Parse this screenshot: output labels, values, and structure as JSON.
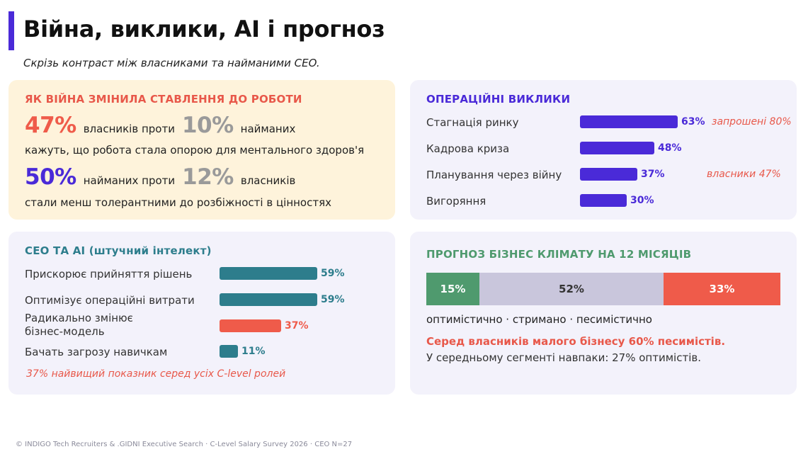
{
  "header": {
    "title": "Війна, виклики, AI і прогноз",
    "subtitle": "Скрізь контраст між власниками та найманими CEO."
  },
  "war_card": {
    "heading": "ЯК ВІЙНА ЗМІНИЛА СТАВЛЕННЯ ДО РОБОТИ",
    "stat1": {
      "pct_a": "47%",
      "text_a": "власників проти",
      "pct_b": "10%",
      "text_b": "найманих"
    },
    "note1": "кажуть, що робота стала опорою для ментального здоров'я",
    "stat2": {
      "pct_a": "50%",
      "text_a": "найманих проти",
      "pct_b": "12%",
      "text_b": "власників"
    },
    "note2": "стали менш толерантними до розбіжності в цінностях"
  },
  "ops_card": {
    "heading": "ОПЕРАЦІЙНІ ВИКЛИКИ",
    "color": "#4a2ad8",
    "rows": [
      {
        "label": "Стагнація ринку",
        "value": 63,
        "value_label": "63%",
        "note": "запрошені 80%"
      },
      {
        "label": "Кадрова криза",
        "value": 48,
        "value_label": "48%",
        "note": ""
      },
      {
        "label": "Планування через війну",
        "value": 37,
        "value_label": "37%",
        "note": "власники 47%"
      },
      {
        "label": "Вигоряння",
        "value": 30,
        "value_label": "30%",
        "note": ""
      }
    ]
  },
  "ai_card": {
    "heading": "CEO ТА AI (штучний інтелект)",
    "rows": [
      {
        "label": "Прискорює прийняття рішень",
        "value": 59,
        "value_label": "59%",
        "color": "#2d7d8c"
      },
      {
        "label": "Оптимізує операційні витрати",
        "value": 59,
        "value_label": "59%",
        "color": "#2d7d8c"
      },
      {
        "label": "Радикально змінює бізнес-модель",
        "value": 37,
        "value_label": "37%",
        "color": "#ef5b4a"
      },
      {
        "label": "Бачать загрозу навичкам",
        "value": 11,
        "value_label": "11%",
        "color": "#2d7d8c"
      }
    ],
    "footnote": "37%  найвищий показник серед усіх C-level ролей"
  },
  "forecast_card": {
    "heading": "ПРОГНОЗ БІЗНЕС КЛІМАТУ НА 12 МІСЯЦІВ",
    "segments": [
      {
        "label": "15%",
        "value": 15,
        "color": "#4f9a6e",
        "text_color": "#ffffff"
      },
      {
        "label": "52%",
        "value": 52,
        "color": "#c9c6dc",
        "text_color": "#333333"
      },
      {
        "label": "33%",
        "value": 33,
        "color": "#ef5b4a",
        "text_color": "#ffffff"
      }
    ],
    "legend": "оптимістично · стримано · песимістично",
    "highlight": "Серед власників малого бізнесу  60% песимістів.",
    "note": "У середньому сегменті навпаки: 27% оптимістів."
  },
  "colors": {
    "accent": "#4a2ad8",
    "coral": "#ef5b4a",
    "teal": "#2d7d8c",
    "green": "#4f9a6e",
    "gray_pct": "#9a9a9a"
  },
  "footer": "© INDIGO Tech Recruiters & .GIDNI Executive Search · C-Level Salary Survey 2026 · CEO N=27"
}
